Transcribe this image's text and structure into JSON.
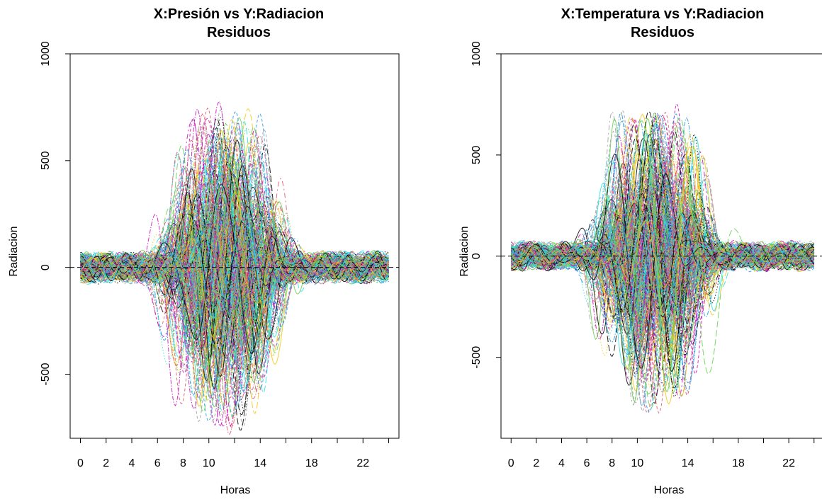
{
  "palette": [
    "#000000",
    "#df536b",
    "#61d04f",
    "#2297e6",
    "#28e2e5",
    "#cd0bbc",
    "#f5c710",
    "#9e9e9e"
  ],
  "dash_patterns": [
    "",
    "4 3",
    "1.5 2.5",
    "6 2 1.5 2",
    "9 4",
    "2 4 7 4"
  ],
  "chart_data": [
    {
      "type": "line",
      "title_lines": [
        "X:Presión vs Y:Radiacion",
        "Residuos"
      ],
      "xlabel": "Horas",
      "ylabel": "Radiacion",
      "xlim": [
        -0.8,
        24.8
      ],
      "ylim": [
        -800,
        1000
      ],
      "xticks": [
        0,
        2,
        4,
        6,
        8,
        10,
        14,
        18,
        22
      ],
      "xticks_minor": [
        12,
        16,
        20,
        24
      ],
      "yticks": [
        -500,
        0,
        500,
        1000
      ],
      "reference_line": 0,
      "grid": false,
      "legend": "none",
      "series_count": 260
    },
    {
      "type": "line",
      "title_lines": [
        "X:Temperatura vs Y:Radiacion",
        "Residuos"
      ],
      "xlabel": "Horas",
      "ylabel": "Radiacion",
      "xlim": [
        -0.8,
        24.8
      ],
      "ylim": [
        -900,
        1000
      ],
      "xticks": [
        0,
        2,
        4,
        6,
        8,
        10,
        14,
        18,
        22
      ],
      "xticks_minor": [
        12,
        16,
        20,
        24
      ],
      "yticks": [
        -500,
        0,
        500,
        1000
      ],
      "reference_line": 0,
      "grid": false,
      "legend": "none",
      "series_count": 260
    }
  ]
}
